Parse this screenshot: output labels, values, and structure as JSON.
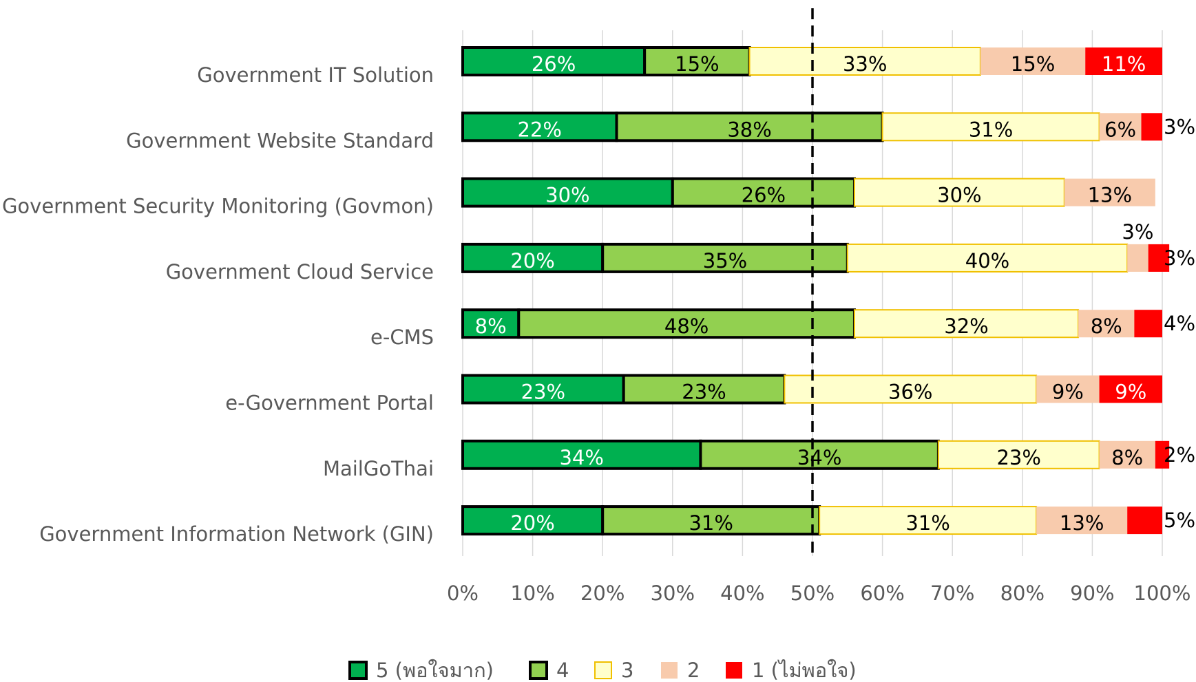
{
  "chart_data": {
    "type": "stacked-bar-horizontal",
    "categories": [
      "Government IT Solution",
      "Government Website Standard",
      "Government Security Monitoring (Govmon)",
      "Government Cloud Service",
      "e-CMS",
      "e-Government Portal",
      "MailGoThai",
      "Government Information  Network (GIN)"
    ],
    "series": [
      {
        "name": "5 (พอใจมาก)",
        "color": "#00b050",
        "values": [
          26,
          22,
          30,
          20,
          8,
          23,
          34,
          20
        ],
        "value_labels": [
          "26%",
          "22%",
          "30%",
          "20%",
          "8%",
          "23%",
          "34%",
          "20%"
        ]
      },
      {
        "name": "4",
        "color": "#92d050",
        "values": [
          15,
          38,
          26,
          35,
          48,
          23,
          34,
          31
        ],
        "value_labels": [
          "15%",
          "38%",
          "26%",
          "35%",
          "48%",
          "23%",
          "34%",
          "31%"
        ]
      },
      {
        "name": "3",
        "color": "#ffffcc",
        "values": [
          33,
          31,
          30,
          40,
          32,
          36,
          23,
          31
        ],
        "value_labels": [
          "33%",
          "31%",
          "30%",
          "40%",
          "32%",
          "36%",
          "23%",
          "31%"
        ]
      },
      {
        "name": "2",
        "color": "#f8cbad",
        "values": [
          15,
          6,
          13,
          3,
          8,
          9,
          8,
          13
        ],
        "value_labels": [
          "15%",
          "6%",
          "13%",
          "3%",
          "8%",
          "9%",
          "8%",
          "13%"
        ]
      },
      {
        "name": "1 (ไม่พอใจ)",
        "color": "#ff0000",
        "values": [
          11,
          3,
          null,
          3,
          4,
          9,
          2,
          5
        ],
        "value_labels": [
          "11%",
          "3%",
          null,
          "3%",
          "4%",
          "9%",
          "2%",
          "5%"
        ]
      }
    ],
    "xlim": [
      0,
      100
    ],
    "xticks": [
      {
        "value": 0,
        "label": "0%"
      },
      {
        "value": 10,
        "label": "10%"
      },
      {
        "value": 20,
        "label": "20%"
      },
      {
        "value": 30,
        "label": "30%"
      },
      {
        "value": 40,
        "label": "40%"
      },
      {
        "value": 50,
        "label": "50%"
      },
      {
        "value": 60,
        "label": "60%"
      },
      {
        "value": 70,
        "label": "70%"
      },
      {
        "value": 80,
        "label": "80%"
      },
      {
        "value": 90,
        "label": "90%"
      },
      {
        "value": 100,
        "label": "100%"
      }
    ],
    "reference_x": 50,
    "grid": true,
    "legend": "bottom"
  }
}
